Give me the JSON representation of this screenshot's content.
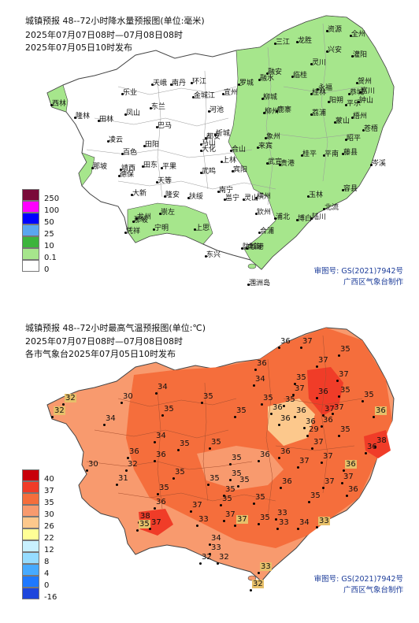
{
  "precip_map": {
    "title": "城镇预报 48--72小时降水量预报图(单位:毫米)",
    "period": "2025年07月07日08时—07月08日08时",
    "issued": "2025年07月05日10时发布",
    "legend": [
      {
        "label": "250",
        "color": "#7a0a3a"
      },
      {
        "label": "100",
        "color": "#ff00ff"
      },
      {
        "label": "50",
        "color": "#0000ff"
      },
      {
        "label": "25",
        "color": "#5aa6f0"
      },
      {
        "label": "10",
        "color": "#3cb43c"
      },
      {
        "label": "0.1",
        "color": "#a6e68c"
      },
      {
        "label": "0",
        "color": "#ffffff"
      }
    ],
    "approval": "审图号: GS(2021)7942号",
    "producer": "广西区气象台制作",
    "cities": [
      "资源",
      "全州",
      "三江",
      "龙胜",
      "兴安",
      "灌阳",
      "融安",
      "灵川",
      "融水",
      "临桂",
      "永福",
      "阳朔",
      "恭城",
      "柳城",
      "鹿寨",
      "荔浦",
      "蒙山",
      "富川",
      "钟山",
      "昭平",
      "贺州",
      "苍梧",
      "藤县",
      "平南",
      "桂平",
      "岑溪",
      "容县",
      "玉林",
      "北流",
      "陆川",
      "博白",
      "浦北",
      "灵山",
      "钦州",
      "防城港",
      "东兴",
      "上思",
      "宁明",
      "龙州",
      "凭祥",
      "靖西",
      "那坡",
      "西林",
      "隆林",
      "田林",
      "乐业",
      "天峨",
      "南丹",
      "凤山",
      "东兰",
      "巴马",
      "凌云",
      "百色",
      "田阳",
      "田东",
      "平果",
      "德保",
      "天等",
      "大新",
      "隆安",
      "武鸣",
      "马山",
      "上林",
      "宾阳",
      "横州",
      "南宁",
      "邕宁",
      "扶绥",
      "崇左",
      "合浦",
      "北海",
      "涠洲岛",
      "金城江",
      "环江",
      "宜州",
      "河池",
      "罗城",
      "柳州",
      "来宾",
      "象州",
      "武宣",
      "忻城",
      "都安",
      "大化",
      "合山",
      "贵港",
      "梧州",
      "桂林",
      "平乐",
      "那坡"
    ]
  },
  "temp_map": {
    "title": "城镇预报 48--72小时最高气温预报图(单位:℃)",
    "period": "2025年07月07日08时—07月08日08时",
    "issued": "各市气象台2025年07月05日10时发布",
    "legend": [
      {
        "label": "40",
        "color": "#c8000a"
      },
      {
        "label": "37",
        "color": "#f03c28"
      },
      {
        "label": "35",
        "color": "#f56e3c"
      },
      {
        "label": "30",
        "color": "#f89a6e"
      },
      {
        "label": "26",
        "color": "#fcc88c"
      },
      {
        "label": "22",
        "color": "#ffff96"
      },
      {
        "label": "12",
        "color": "#c8f0ff"
      },
      {
        "label": "8",
        "color": "#96dcff"
      },
      {
        "label": "4",
        "color": "#46aaff"
      },
      {
        "label": "0",
        "color": "#1e78ff"
      },
      {
        "label": "-16",
        "color": "#1e46dc"
      }
    ],
    "approval": "审图号: GS(2021)7942号",
    "producer": "广西区气象台制作",
    "values": [
      "36",
      "37",
      "35",
      "37",
      "37",
      "36",
      "34",
      "35",
      "36",
      "35",
      "36",
      "36",
      "37",
      "36",
      "37",
      "37",
      "37",
      "32",
      "30",
      "34",
      "35",
      "35",
      "35",
      "35",
      "36",
      "32",
      "34",
      "35",
      "36",
      "29",
      "35",
      "36",
      "38",
      "35",
      "36",
      "34",
      "36",
      "36",
      "35",
      "35",
      "37",
      "36",
      "37",
      "36",
      "30",
      "31",
      "32",
      "35",
      "35",
      "35",
      "35",
      "36",
      "35",
      "35",
      "36",
      "35",
      "37",
      "37",
      "36",
      "35",
      "36",
      "37",
      "35",
      "35",
      "37",
      "35",
      "37",
      "38",
      "35",
      "37",
      "33",
      "33",
      "33",
      "34",
      "33",
      "34",
      "32",
      "32",
      "33",
      "33",
      "32"
    ]
  }
}
